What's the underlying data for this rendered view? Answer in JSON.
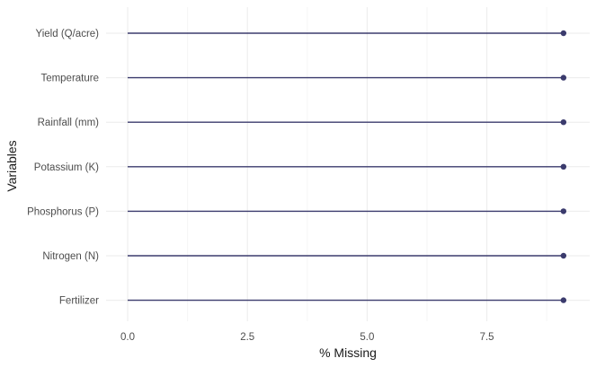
{
  "chart_data": {
    "type": "lollipop",
    "orientation": "horizontal",
    "xlabel": "% Missing",
    "ylabel": "Variables",
    "xlim": [
      0,
      9.1
    ],
    "xticks": [
      0.0,
      2.5,
      5.0,
      7.5
    ],
    "xtick_labels": [
      "0.0",
      "2.5",
      "5.0",
      "7.5"
    ],
    "categories": [
      "Yield (Q/acre)",
      "Temperature",
      "Rainfall (mm)",
      "Potassium (K)",
      "Phosphorus (P)",
      "Nitrogen (N)",
      "Fertilizer"
    ],
    "values": [
      9.1,
      9.1,
      9.1,
      9.1,
      9.1,
      9.1,
      9.1
    ],
    "grid": true,
    "colors": {
      "stem": "#3b3b6d",
      "point": "#3b3b6d",
      "grid_major": "#ebebeb",
      "grid_minor": "#f5f5f5"
    }
  }
}
